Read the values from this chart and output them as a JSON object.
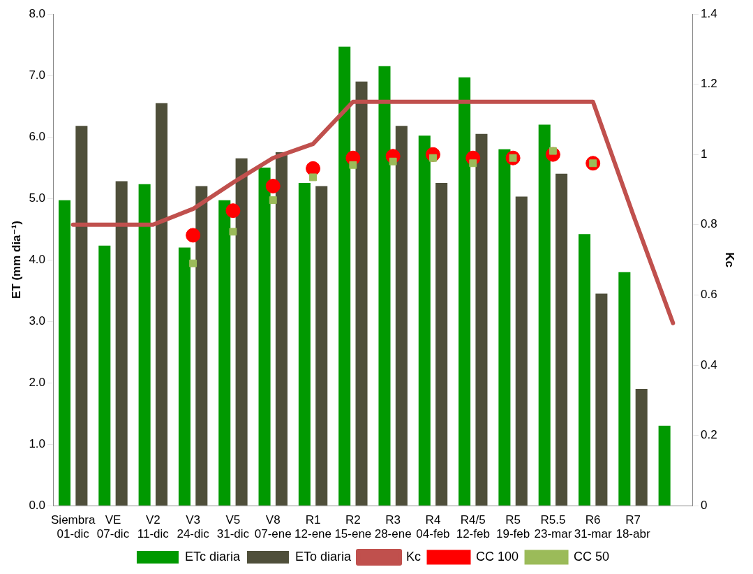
{
  "chart_data": {
    "type": "bar",
    "ylabel": "ET (mm dia⁻¹)",
    "y2label": "Kc",
    "categories": [
      "Siembra\n01-dic",
      "VE\n07-dic",
      "V2\n11-dic",
      "V3\n24-dic",
      "V5\n31-dic",
      "V8\n07-ene",
      "R1\n12-ene",
      "R2\n15-ene",
      "R3\n28-ene",
      "R4\n04-feb",
      "R4/5\n12-feb",
      "R5\n19-feb",
      "R5.5\n23-mar",
      "R6\n31-mar",
      "R7\n18-abr",
      null
    ],
    "series": [
      {
        "name": "ETc diaria",
        "color": "#009900",
        "values": [
          4.97,
          4.23,
          5.23,
          4.2,
          4.97,
          5.5,
          5.25,
          7.47,
          7.15,
          6.02,
          6.97,
          5.8,
          6.2,
          4.42,
          3.8,
          1.3
        ]
      },
      {
        "name": "ETo diaria",
        "color": "#4f4f3a",
        "values": [
          6.18,
          5.28,
          6.55,
          5.2,
          5.65,
          5.75,
          5.2,
          6.9,
          6.18,
          5.25,
          6.05,
          5.03,
          5.4,
          3.45,
          1.9,
          null
        ]
      },
      {
        "name": "Kc",
        "type": "line",
        "axis": "y2",
        "color": "#c0504d",
        "marker": "none",
        "values": [
          0.8,
          0.8,
          0.8,
          0.845,
          0.92,
          0.99,
          1.03,
          1.15,
          1.15,
          1.15,
          1.15,
          1.15,
          1.15,
          1.15,
          0.83,
          0.52
        ]
      },
      {
        "name": "CC 100",
        "type": "scatter",
        "axis": "y2",
        "color": "#ff0000",
        "marker": "circle",
        "values": [
          null,
          null,
          null,
          0.77,
          0.84,
          0.91,
          0.96,
          0.99,
          0.995,
          1.0,
          0.99,
          0.99,
          1.0,
          0.975,
          null,
          null
        ]
      },
      {
        "name": "CC 50",
        "type": "scatter",
        "axis": "y2",
        "color": "#9bbb59",
        "marker": "square",
        "values": [
          null,
          null,
          null,
          0.69,
          0.78,
          0.87,
          0.935,
          0.97,
          0.98,
          0.99,
          0.975,
          0.99,
          1.01,
          0.975,
          null,
          null
        ]
      }
    ],
    "ylim": [
      0,
      8
    ],
    "yticks": [
      {
        "value": 0,
        "label": "0.0"
      },
      {
        "value": 1,
        "label": "1.0"
      },
      {
        "value": 2,
        "label": "2.0"
      },
      {
        "value": 3,
        "label": "3.0"
      },
      {
        "value": 4,
        "label": "4.0"
      },
      {
        "value": 5,
        "label": "5.0"
      },
      {
        "value": 6,
        "label": "6.0"
      },
      {
        "value": 7,
        "label": "7.0"
      },
      {
        "value": 8,
        "label": "8.0"
      }
    ],
    "y2lim": [
      0,
      1.4
    ],
    "y2ticks": [
      0,
      0.2,
      0.4,
      0.6,
      0.8,
      1,
      1.2,
      1.4
    ],
    "grid": false,
    "legend": "bottom"
  }
}
